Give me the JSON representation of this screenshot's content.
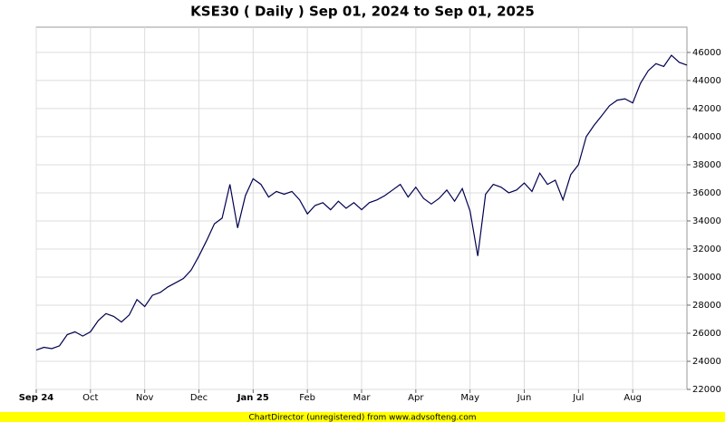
{
  "chart_data": {
    "type": "line",
    "title": "KSE30 ( Daily ) Sep 01, 2024 to Sep 01, 2025",
    "footer": "ChartDirector (unregistered) from www.advsofteng.com",
    "categories": [
      "Sep 24",
      null,
      null,
      null,
      null,
      null,
      null,
      "Oct",
      null,
      null,
      null,
      null,
      null,
      null,
      "Nov",
      null,
      null,
      null,
      null,
      null,
      null,
      "Dec",
      null,
      null,
      null,
      null,
      null,
      null,
      "Jan 25",
      null,
      null,
      null,
      null,
      null,
      null,
      "Feb",
      null,
      null,
      null,
      null,
      null,
      null,
      "Mar",
      null,
      null,
      null,
      null,
      null,
      null,
      "Apr",
      null,
      null,
      null,
      null,
      null,
      null,
      "May",
      null,
      null,
      null,
      null,
      null,
      null,
      "Jun",
      null,
      null,
      null,
      null,
      null,
      null,
      "Jul",
      null,
      null,
      null,
      null,
      null,
      null,
      "Aug",
      null,
      null,
      null,
      null,
      null,
      null,
      null
    ],
    "series": [
      {
        "name": "KSE30",
        "color": "#000050",
        "values": [
          24800,
          25000,
          24900,
          25100,
          25900,
          26100,
          25800,
          26100,
          26900,
          27400,
          27200,
          26800,
          27300,
          28400,
          27900,
          28700,
          28900,
          29300,
          29600,
          29900,
          30500,
          31500,
          32600,
          33800,
          34200,
          36600,
          33500,
          35800,
          37000,
          36600,
          35700,
          36100,
          35900,
          36100,
          35500,
          34500,
          35100,
          35300,
          34800,
          35400,
          34900,
          35300,
          34800,
          35300,
          35500,
          35800,
          36200,
          36600,
          35700,
          36400,
          35600,
          35200,
          35600,
          36200,
          35400,
          36300,
          34700,
          31500,
          35900,
          36600,
          36400,
          36000,
          36200,
          36700,
          36100,
          37400,
          36600,
          36900,
          35500,
          37300,
          38000,
          40000,
          40800,
          41500,
          42200,
          42600,
          42700,
          42400,
          43800,
          44700,
          45200,
          45000,
          45800,
          45300,
          45100
        ]
      }
    ],
    "ylim": [
      22000,
      47800
    ],
    "yticks": [
      22000,
      24000,
      26000,
      28000,
      30000,
      32000,
      34000,
      36000,
      38000,
      40000,
      42000,
      44000,
      46000
    ],
    "grid": true
  }
}
